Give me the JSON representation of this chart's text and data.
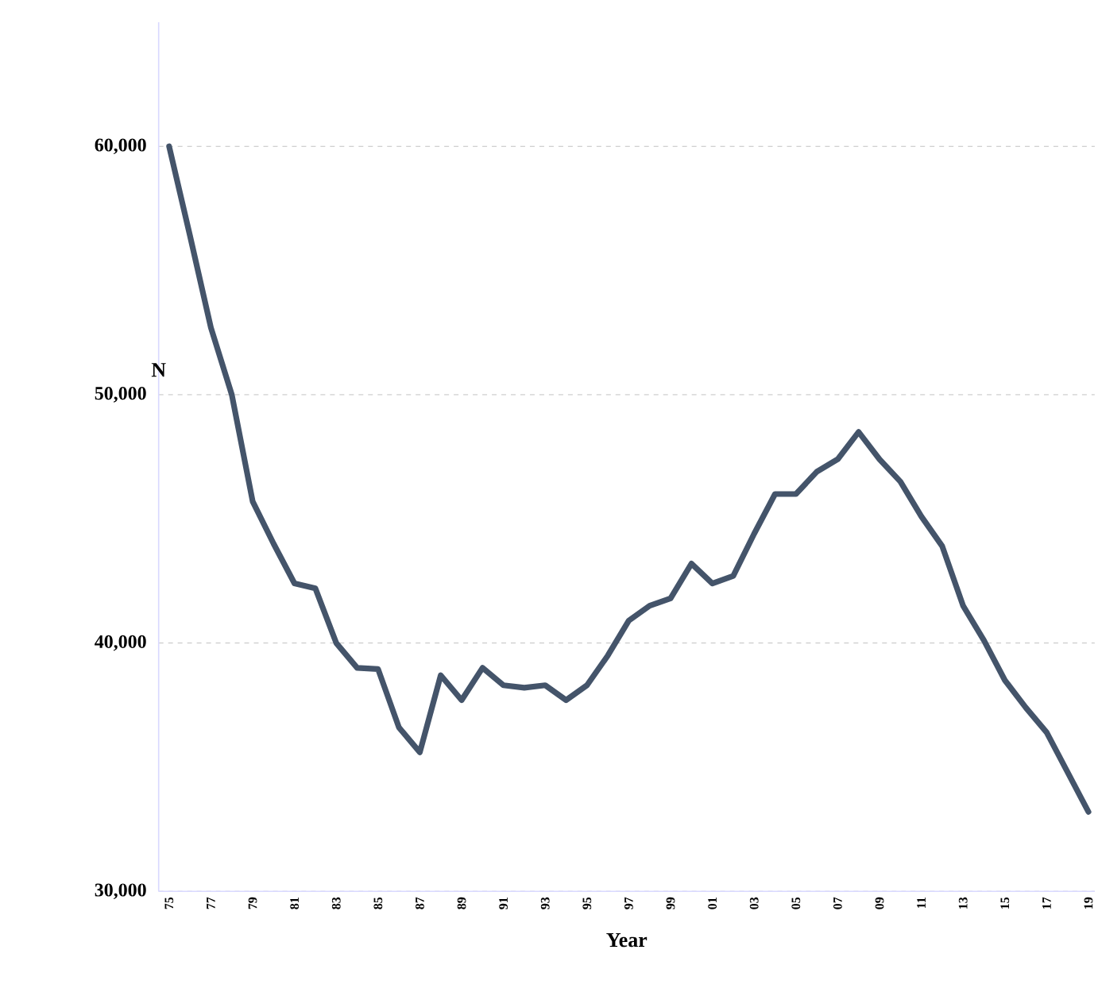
{
  "chart_data": {
    "type": "line",
    "xlabel": "Year",
    "ylabel": "N",
    "categories": [
      "75",
      null,
      "77",
      null,
      "79",
      null,
      "81",
      null,
      "83",
      null,
      "85",
      null,
      "87",
      null,
      "89",
      null,
      "91",
      null,
      "93",
      null,
      "95",
      null,
      "97",
      null,
      "99",
      null,
      "01",
      null,
      "03",
      null,
      "05",
      null,
      "07",
      null,
      "09",
      null,
      "11",
      null,
      "13",
      null,
      "15",
      null,
      "17",
      null,
      "19"
    ],
    "series": [
      {
        "color": "#44546a",
        "values": [
          60000,
          56400,
          52700,
          50000,
          45700,
          44000,
          42400,
          42200,
          40000,
          39000,
          38950,
          36600,
          35600,
          38700,
          37700,
          39000,
          38300,
          38200,
          38300,
          37700,
          38300,
          39500,
          40900,
          41500,
          41800,
          43200,
          42400,
          42700,
          44400,
          46000,
          46000,
          46900,
          47400,
          48500,
          47400,
          46500,
          45100,
          43900,
          41500,
          40100,
          38500,
          37400,
          36400,
          34800,
          33200
        ]
      }
    ],
    "ylim": [
      30000,
      65000
    ],
    "yticks": [
      {
        "value": 30000,
        "label": "30,000"
      },
      {
        "value": 40000,
        "label": "40,000"
      },
      {
        "value": 50000,
        "label": "50,000"
      },
      {
        "value": 60000,
        "label": "60,000"
      }
    ],
    "grid": "y",
    "marker": "none",
    "line_style": "solid"
  }
}
